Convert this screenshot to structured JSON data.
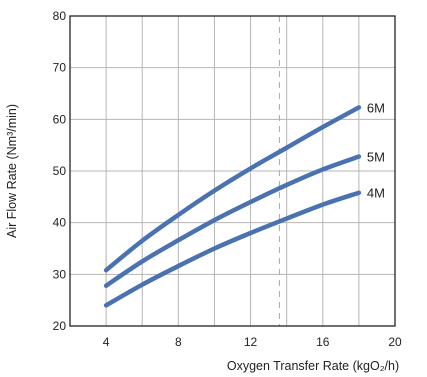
{
  "chart_data": {
    "type": "line",
    "xlabel": "Oxygen Transfer Rate (kgO₂/h)",
    "ylabel": "Air Flow Rate (Nm³/min)",
    "xlim": [
      2,
      20
    ],
    "ylim": [
      20,
      80
    ],
    "x_ticks": [
      "4",
      "8",
      "12",
      "16",
      "20"
    ],
    "y_ticks": [
      "20",
      "30",
      "40",
      "50",
      "60",
      "70",
      "80"
    ],
    "grid": true,
    "reference_line_x": 13.6,
    "series": [
      {
        "name": "6M",
        "x": [
          4,
          6,
          8,
          10,
          12,
          14,
          16,
          18
        ],
        "values": [
          30.8,
          36.5,
          41.5,
          46.2,
          50.5,
          54.5,
          58.5,
          62.3
        ]
      },
      {
        "name": "5M",
        "x": [
          4,
          6,
          8,
          10,
          12,
          14,
          16,
          18
        ],
        "values": [
          27.8,
          32.5,
          36.6,
          40.5,
          44.0,
          47.3,
          50.3,
          52.8
        ]
      },
      {
        "name": "4M",
        "x": [
          4,
          6,
          8,
          10,
          12,
          14,
          16,
          18
        ],
        "values": [
          24.0,
          28.0,
          31.6,
          35.0,
          38.0,
          40.8,
          43.5,
          45.8
        ]
      }
    ],
    "colors": {
      "line": "#4a72b0",
      "grid": "#b5b5b5",
      "reference": "#aaaaaa"
    }
  }
}
